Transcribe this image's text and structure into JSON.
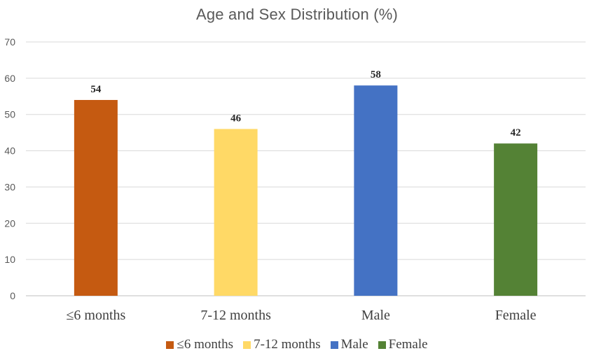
{
  "chart_data": {
    "type": "bar",
    "title": "Age and Sex Distribution (%)",
    "xlabel": "",
    "ylabel": "",
    "categories": [
      "≤6 months",
      "7-12 months",
      "Male",
      "Female"
    ],
    "values": [
      54,
      46,
      58,
      42
    ],
    "colors": [
      "#C55A11",
      "#FFD966",
      "#4472C4",
      "#548235"
    ],
    "ylim": [
      0,
      70
    ],
    "yticks": [
      0,
      10,
      20,
      30,
      40,
      50,
      60,
      70
    ],
    "grid": true,
    "data_labels": true,
    "legend": {
      "placement": "bottom",
      "entries": [
        "≤6 months",
        "7-12 months",
        "Male",
        "Female"
      ]
    }
  }
}
